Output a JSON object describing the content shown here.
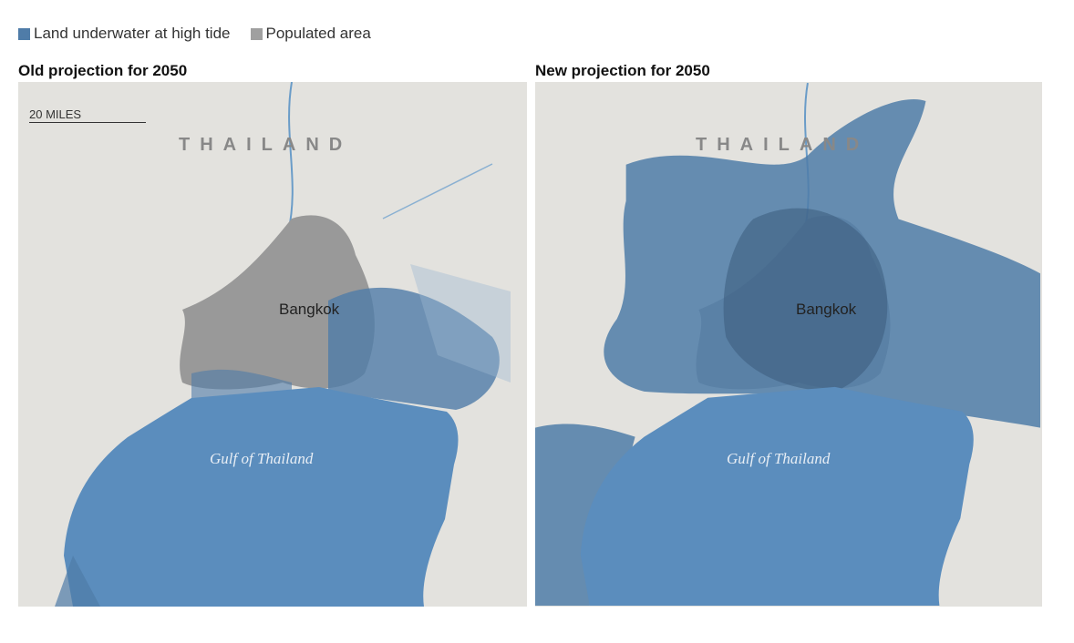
{
  "legend": [
    {
      "label": "Land underwater at high tide",
      "color": "#4f7ca8"
    },
    {
      "label": "Populated area",
      "color": "#a0a0a0"
    }
  ],
  "maps": [
    {
      "title": "Old projection for 2050",
      "scale": "20 MILES",
      "country": "THAILAND",
      "city": "Bangkok",
      "sea": "Gulf of Thailand",
      "flood_extent": "limited"
    },
    {
      "title": "New projection for 2050",
      "country": "THAILAND",
      "city": "Bangkok",
      "sea": "Gulf of Thailand",
      "flood_extent": "extensive"
    }
  ],
  "colors": {
    "land": "#e3e2de",
    "sea": "#5b8dbd",
    "flood": "#4f7ca8",
    "populated": "#999999"
  }
}
